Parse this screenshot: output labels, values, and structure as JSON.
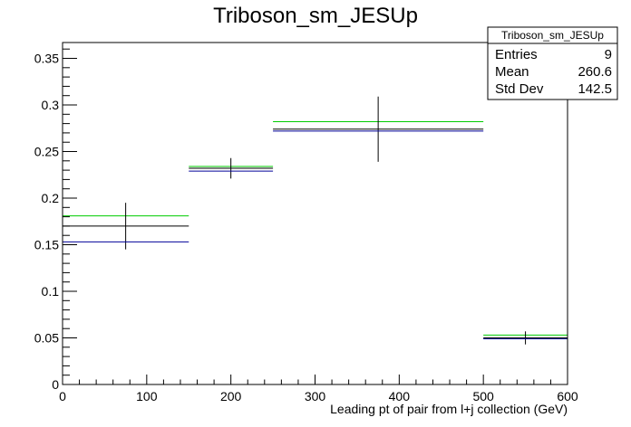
{
  "chart_data": {
    "type": "histogram",
    "title": "Triboson_sm_JESUp",
    "xlabel": "Leading pt of pair from l+j collection (GeV)",
    "ylabel": "",
    "xlim": [
      0,
      600
    ],
    "ylim": [
      0,
      0.367
    ],
    "x_ticks": [
      0,
      100,
      200,
      300,
      400,
      500,
      600
    ],
    "y_ticks": [
      0,
      0.05,
      0.1,
      0.15,
      0.2,
      0.25,
      0.3,
      0.35
    ],
    "x_tick_labels": [
      "0",
      "100",
      "200",
      "300",
      "400",
      "500",
      "600"
    ],
    "y_tick_labels": [
      "0",
      "0.05",
      "0.1",
      "0.15",
      "0.2",
      "0.25",
      "0.3",
      "0.35"
    ],
    "bins": [
      {
        "low": 0,
        "high": 150,
        "center": 75
      },
      {
        "low": 150,
        "high": 250,
        "center": 200
      },
      {
        "low": 250,
        "high": 500,
        "center": 375
      },
      {
        "low": 500,
        "high": 600,
        "center": 550
      }
    ],
    "series": [
      {
        "color": "#00cc00",
        "values": [
          0.181,
          0.234,
          0.282,
          0.053
        ]
      },
      {
        "color": "#000000",
        "values": [
          0.17,
          0.232,
          0.274,
          0.05
        ],
        "errors": [
          0.025,
          0.011,
          0.035,
          0.007
        ]
      },
      {
        "color": "#000099",
        "values": [
          0.153,
          0.229,
          0.272,
          0.049
        ]
      }
    ],
    "stats_box": {
      "title": "Triboson_sm_JESUp",
      "rows": [
        {
          "label": "Entries",
          "value": "9"
        },
        {
          "label": "Mean",
          "value": "260.6"
        },
        {
          "label": "Std Dev",
          "value": "142.5"
        }
      ]
    }
  }
}
